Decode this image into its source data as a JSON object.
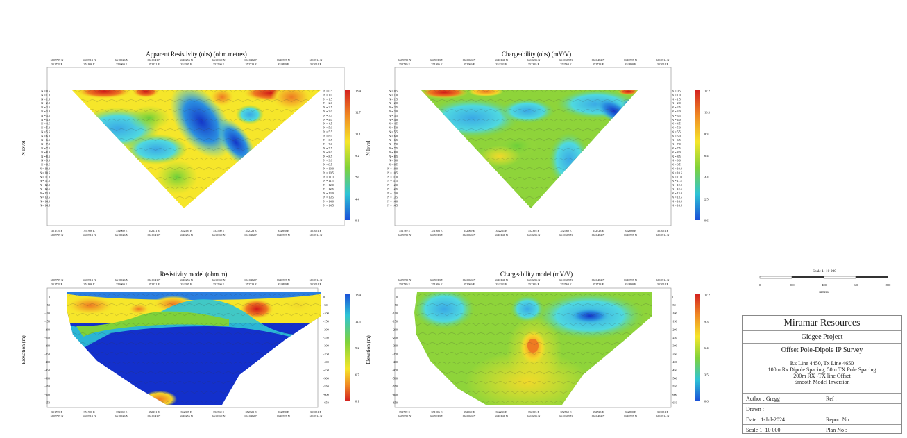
{
  "axes": {
    "eastings": [
      "351739 E",
      "351906 E",
      "352069 E",
      "352231 E",
      "352395 E",
      "352560 E",
      "352723 E",
      "352890 E",
      "353051 E"
    ],
    "northings": [
      "6609799 N",
      "6609913 N",
      "6610026 N",
      "6610141 N",
      "6610256 N",
      "6610369 N",
      "6610482 N",
      "6610597 N",
      "6610714 N"
    ],
    "n_levels": [
      "N = 0.5",
      "N = 1.0",
      "N = 1.5",
      "N = 2.0",
      "N = 2.5",
      "N = 3.0",
      "N = 3.5",
      "N = 4.0",
      "N = 4.5",
      "N = 5.0",
      "N = 5.5",
      "N = 6.0",
      "N = 6.5",
      "N = 7.0",
      "N = 7.5",
      "N = 8.0",
      "N = 8.5",
      "N = 9.0",
      "N = 9.5",
      "N = 10.0",
      "N = 10.5",
      "N = 11.0",
      "N = 11.5",
      "N = 12.0",
      "N = 12.5",
      "N = 13.0",
      "N = 13.5",
      "N = 14.0",
      "N = 14.5"
    ],
    "elevations": [
      "0",
      "-50",
      "-100",
      "-150",
      "-200",
      "-250",
      "-300",
      "-350",
      "-400",
      "-450",
      "-500",
      "-550",
      "-600",
      "-650"
    ],
    "n_level_label": "N level",
    "elevation_label": "Elevation (m)"
  },
  "chart_data": [
    {
      "type": "heatmap",
      "title": "Apparent Resistivity (obs) (ohm.metres)",
      "ylabel": "N level",
      "colorbar": {
        "labels": [
          "18.4",
          "12.7",
          "11.1",
          "9.2",
          "7.6",
          "4.4",
          "0.1"
        ],
        "colors": [
          "#d32020",
          "#f08a24",
          "#f6e62a",
          "#7fd23a",
          "#2ec4d6",
          "#1a4fd8"
        ]
      }
    },
    {
      "type": "heatmap",
      "title": "Chargeability (obs) (mV/V)",
      "ylabel": "N level",
      "colorbar": {
        "labels": [
          "12.2",
          "10.3",
          "8.3",
          "6.4",
          "4.4",
          "2.5",
          "0.6"
        ],
        "colors": [
          "#d32020",
          "#f08a24",
          "#f6e62a",
          "#7fd23a",
          "#2ec4d6",
          "#1a4fd8"
        ]
      }
    },
    {
      "type": "heatmap",
      "title": "Resistivity model (ohm.m)",
      "ylabel": "Elevation (m)",
      "colorbar": {
        "labels": [
          "18.4",
          "11.5",
          "9.2",
          "6.7",
          "0.1"
        ],
        "colors": [
          "#1a4fd8",
          "#2ec4d6",
          "#7fd23a",
          "#f6e62a",
          "#f08a24",
          "#d32020"
        ]
      }
    },
    {
      "type": "heatmap",
      "title": "Chargeability model (mV/V)",
      "ylabel": "Elevation (m)",
      "colorbar": {
        "labels": [
          "12.2",
          "9.3",
          "6.4",
          "3.5",
          "0.6"
        ],
        "colors": [
          "#d32020",
          "#f08a24",
          "#f6e62a",
          "#7fd23a",
          "#2ec4d6",
          "#1a4fd8"
        ]
      }
    }
  ],
  "scale_bar": {
    "title": "Scale 1: 10 000",
    "ticks": [
      "0",
      "200",
      "400",
      "600",
      "800"
    ],
    "unit": "metres"
  },
  "title_block": {
    "company": "Miramar Resources",
    "project": "Gidgee Project",
    "survey": "Offset Pole-Dipole IP Survey",
    "notes": [
      "Rx Line 4450, Tx Line 4650",
      "100m Rx Dipole Spacing, 50m TX Pole Spacing",
      "200m RX -TX line Offset",
      "Smooth Model Inversion"
    ],
    "author": "Author : Gregg",
    "ref": "Ref :",
    "drawn": "Drawn :",
    "date": "Date : 1-Jul-2024",
    "report": "Report No :",
    "scale": "Scale 1: 10 000",
    "plan": "Plan No :"
  }
}
